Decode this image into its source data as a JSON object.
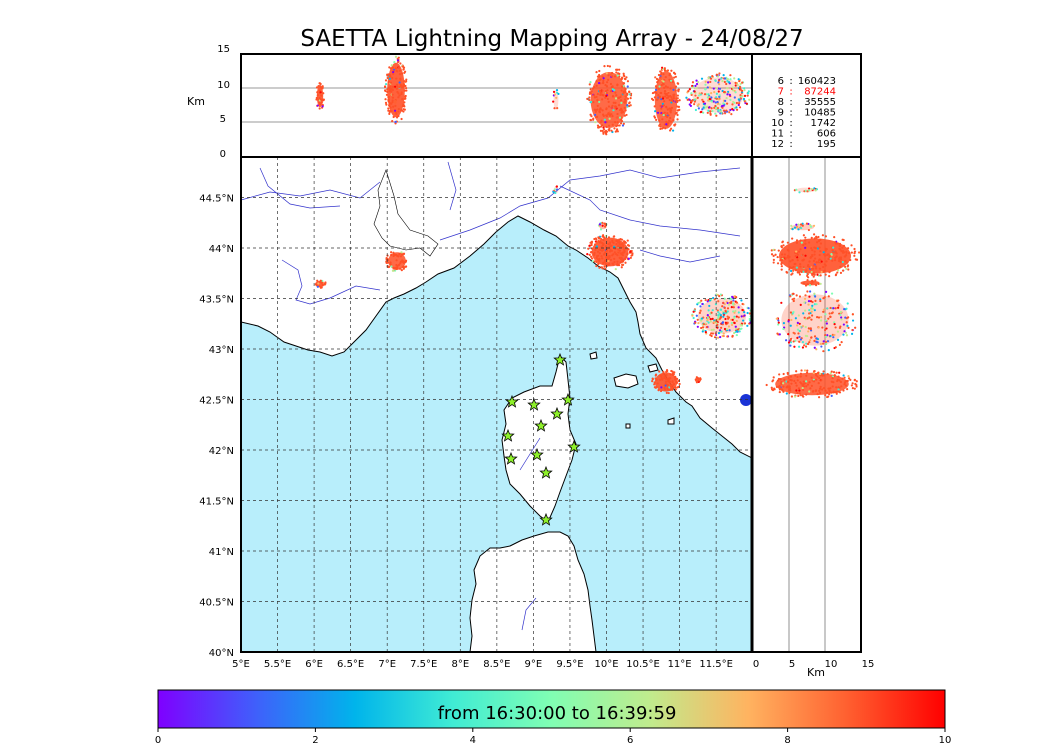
{
  "title": "SAETTA Lightning Mapping Array - 24/08/27",
  "height_panel": {
    "unit_label": "Km",
    "ticks": [
      "0",
      "5",
      "10",
      "15"
    ]
  },
  "side_panel": {
    "unit_label": "Km",
    "ticks": [
      "0",
      "5",
      "10",
      "15"
    ]
  },
  "map": {
    "lon_ticks": [
      "5°E",
      "5.5°E",
      "6°E",
      "6.5°E",
      "7°E",
      "7.5°E",
      "8°E",
      "8.5°E",
      "9°E",
      "9.5°E",
      "10°E",
      "10.5°E",
      "11°E",
      "11.5°E"
    ],
    "lat_ticks": [
      "40°N",
      "40.5°N",
      "41°N",
      "41.5°N",
      "42°N",
      "42.5°N",
      "43°N",
      "43.5°N",
      "44°N",
      "44.5°N"
    ],
    "sea_color": "#b8eefb",
    "land_color": "#ffffff",
    "river_color": "#3333cc",
    "station_color": "#8ef02a",
    "dominant_source_color": "#ff5027"
  },
  "stations_count": [
    {
      "label": "6",
      "value": "160423",
      "color": "#000000"
    },
    {
      "label": "7",
      "value": "87244",
      "color": "#ff0000"
    },
    {
      "label": "8",
      "value": "35555",
      "color": "#000000"
    },
    {
      "label": "9",
      "value": "10485",
      "color": "#000000"
    },
    {
      "label": "10",
      "value": "1742",
      "color": "#000000"
    },
    {
      "label": "11",
      "value": "606",
      "color": "#000000"
    },
    {
      "label": "12",
      "value": "195",
      "color": "#000000"
    }
  ],
  "colorbar": {
    "label": "from 16:30:00 to 16:39:59",
    "ticks": [
      "0",
      "2",
      "4",
      "6",
      "8",
      "10"
    ],
    "colors": [
      "#7f00ff",
      "#3f60fb",
      "#00b4eb",
      "#40ecd4",
      "#80feb3",
      "#c0eb8d",
      "#ffb360",
      "#ff6030",
      "#ff0000"
    ]
  }
}
